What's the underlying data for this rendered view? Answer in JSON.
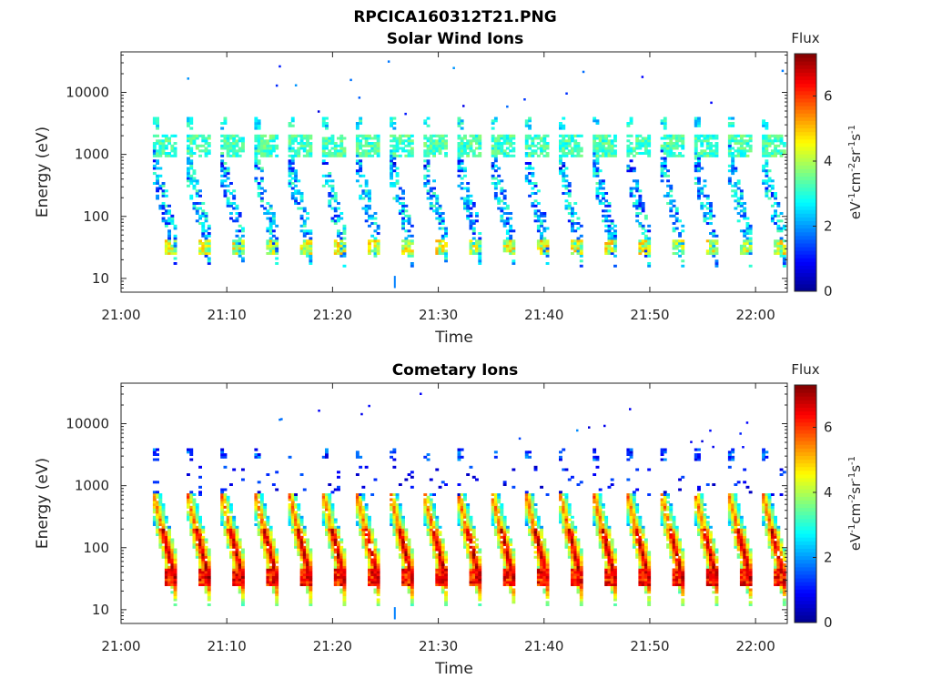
{
  "figure": {
    "title": "RPCICA160312T21.PNG"
  },
  "colormap": [
    "#00008f",
    "#0000ff",
    "#0080ff",
    "#00ffff",
    "#80ff80",
    "#ffff00",
    "#ff8000",
    "#ff0000",
    "#800000"
  ],
  "chart_data": [
    {
      "type": "heatmap",
      "title": "Solar Wind Ions",
      "xlabel": "Time",
      "ylabel": "Energy (eV)",
      "yscale": "log",
      "xlim": [
        "21:00",
        "22:03"
      ],
      "ylim": [
        6,
        45000
      ],
      "x_ticks": [
        "21:00",
        "21:10",
        "21:20",
        "21:30",
        "21:40",
        "21:50",
        "22:00"
      ],
      "y_ticks": [
        "10",
        "100",
        "1000",
        "10000"
      ],
      "colorbar": {
        "title": "Flux",
        "units": "eV-1cm-2sr-1s-1",
        "range": [
          0,
          7.3
        ],
        "ticks": [
          "0",
          "2",
          "4",
          "6"
        ]
      },
      "scan_start_minutes": [
        3.0,
        6.2,
        9.4,
        12.6,
        15.8,
        19.0,
        22.2,
        25.4,
        28.6,
        31.8,
        35.0,
        38.2,
        41.4,
        44.6,
        47.8,
        51.0,
        54.2,
        57.4,
        60.6
      ],
      "features": [
        {
          "name": "solar wind band",
          "energy_range_eV": [
            900,
            2000
          ],
          "peak_flux": 3.5
        },
        {
          "name": "high energy sparse",
          "energy_range_eV": [
            2500,
            4000
          ],
          "peak_flux": 2.8
        },
        {
          "name": "low energy tail",
          "energy_range_eV": [
            25,
            45
          ],
          "peak_flux": 5.0
        }
      ]
    },
    {
      "type": "heatmap",
      "title": "Cometary Ions",
      "xlabel": "Time",
      "ylabel": "Energy (eV)",
      "yscale": "log",
      "xlim": [
        "21:00",
        "22:03"
      ],
      "ylim": [
        6,
        45000
      ],
      "x_ticks": [
        "21:00",
        "21:10",
        "21:20",
        "21:30",
        "21:40",
        "21:50",
        "22:00"
      ],
      "y_ticks": [
        "10",
        "100",
        "1000",
        "10000"
      ],
      "colorbar": {
        "title": "Flux",
        "units": "eV-1cm-2sr-1s-1",
        "range": [
          0,
          7.3
        ],
        "ticks": [
          "0",
          "2",
          "4",
          "6"
        ]
      },
      "scan_start_minutes": [
        3.0,
        6.2,
        9.4,
        12.6,
        15.8,
        19.0,
        22.2,
        25.4,
        28.6,
        31.8,
        35.0,
        38.2,
        41.4,
        44.6,
        47.8,
        51.0,
        54.2,
        57.4,
        60.6
      ],
      "features": [
        {
          "name": "cometary ion streak",
          "energy_range_eV": [
            25,
            600
          ],
          "peak_flux": 6.5
        },
        {
          "name": "high energy sparse",
          "energy_range_eV": [
            2500,
            4000
          ],
          "peak_flux": 1.8
        }
      ]
    }
  ]
}
